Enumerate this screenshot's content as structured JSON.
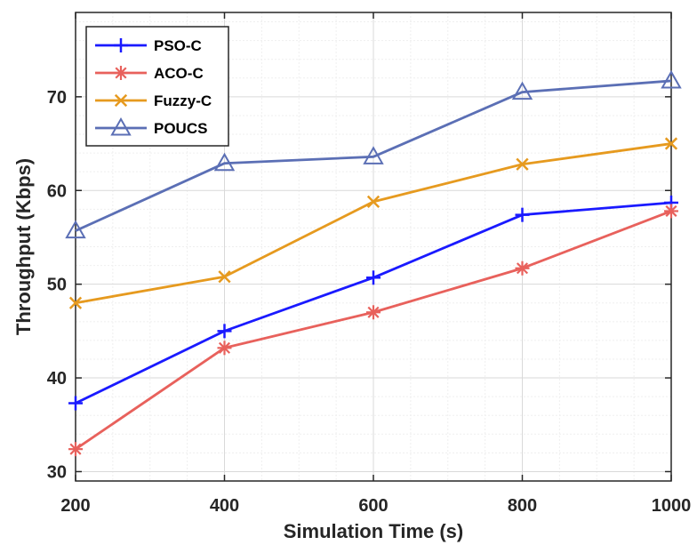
{
  "chart_data": {
    "type": "line",
    "title": "",
    "xlabel": "Simulation Time (s)",
    "ylabel": "Throughput (Kbps)",
    "x": [
      200,
      400,
      600,
      800,
      1000
    ],
    "xlim": [
      200,
      1000
    ],
    "ylim": [
      29,
      79
    ],
    "xticks": [
      "200",
      "400",
      "600",
      "800",
      "1000"
    ],
    "yticks": [
      "30",
      "40",
      "50",
      "60",
      "70"
    ],
    "grid": true,
    "legend_position": "top-left",
    "series": [
      {
        "name": "PSO-C",
        "color": "#1a1aff",
        "marker": "plus",
        "values": [
          37.3,
          45.0,
          50.7,
          57.4,
          58.7
        ]
      },
      {
        "name": "ACO-C",
        "color": "#e8615c",
        "marker": "asterisk",
        "values": [
          32.4,
          43.2,
          47.0,
          51.7,
          57.8
        ]
      },
      {
        "name": "Fuzzy-C",
        "color": "#e69a1f",
        "marker": "x",
        "values": [
          48.0,
          50.8,
          58.8,
          62.8,
          65.0
        ]
      },
      {
        "name": "POUCS",
        "color": "#5b6fb5",
        "marker": "triangle",
        "values": [
          55.7,
          62.9,
          63.6,
          70.5,
          71.7
        ]
      }
    ]
  }
}
